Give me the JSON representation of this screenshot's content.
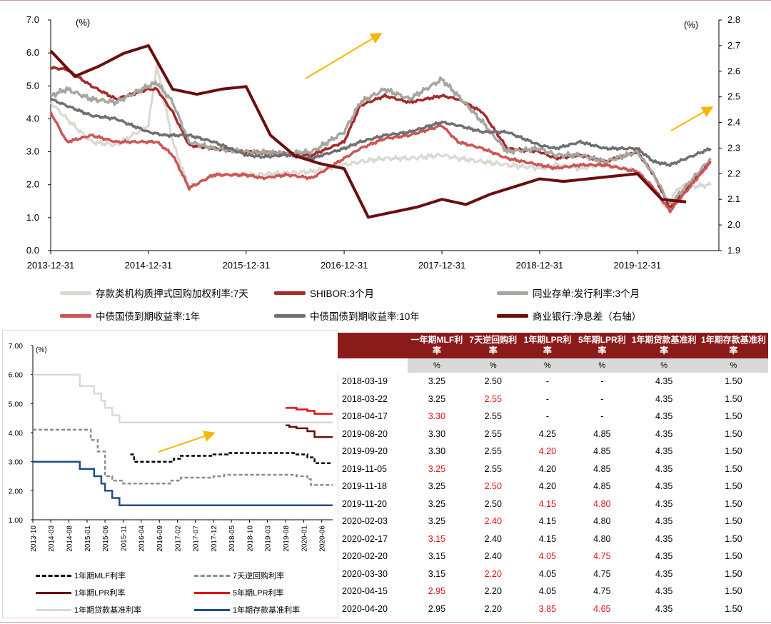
{
  "top_chart": {
    "left_unit": "(%)",
    "right_unit": "(%)",
    "left_ticks": [
      "0.0",
      "1.0",
      "2.0",
      "3.0",
      "4.0",
      "5.0",
      "6.0",
      "7.0"
    ],
    "right_ticks": [
      "1.9",
      "2.0",
      "2.1",
      "2.2",
      "2.3",
      "2.4",
      "2.5",
      "2.6",
      "2.7",
      "2.8"
    ],
    "x_ticks": [
      "2013-12-31",
      "2014-12-31",
      "2015-12-31",
      "2016-12-31",
      "2017-12-31",
      "2018-12-31",
      "2019-12-31"
    ],
    "legend": [
      {
        "label": "存款类机构质押式回购加权利率:7天",
        "color": "#d9d9d2"
      },
      {
        "label": "SHIBOR:3个月",
        "color": "#a52a2a"
      },
      {
        "label": "同业存单:发行利率:3个月",
        "color": "#a6a6a0"
      },
      {
        "label": "中债国债到期收益率:1年",
        "color": "#cd5555"
      },
      {
        "label": "中债国债到期收益率:10年",
        "color": "#707070"
      },
      {
        "label": "商业银行:净息差（右轴）",
        "color": "#6b0d0d"
      }
    ]
  },
  "bottom_chart": {
    "unit": "(%)",
    "y_ticks": [
      "1.00",
      "2.00",
      "3.00",
      "4.00",
      "5.00",
      "6.00",
      "7.00"
    ],
    "x_ticks": [
      "2013-10",
      "2014-03",
      "2014-08",
      "2015-01",
      "2015-06",
      "2015-11",
      "2016-04",
      "2016-09",
      "2017-02",
      "2017-07",
      "2017-12",
      "2018-05",
      "2018-10",
      "2019-03",
      "2019-08",
      "2020-01",
      "2020-06"
    ],
    "legend": [
      {
        "label": "1年期MLF利率",
        "color": "#000000",
        "dash": true
      },
      {
        "label": "7天逆回购利率",
        "color": "#8c8c8c",
        "dash": true
      },
      {
        "label": "1年期LPR利率",
        "color": "#6b0d0d",
        "dash": false
      },
      {
        "label": "5年期LPR利率",
        "color": "#e01010",
        "dash": false
      },
      {
        "label": "1年期贷款基准利率",
        "color": "#d9d9d9",
        "dash": false
      },
      {
        "label": "1年期存款基准利率",
        "color": "#1f4e8c",
        "dash": false
      }
    ]
  },
  "table": {
    "headers": [
      "一年期MLF利率",
      "7天逆回购利率",
      "1年期LPR利率",
      "5年期LPR利率",
      "1年期贷款基准利率",
      "1年期存款基准利率"
    ],
    "units": [
      "%",
      "%",
      "%",
      "%",
      "%",
      "%"
    ],
    "rows": [
      {
        "date": "2018-03-19",
        "values": [
          "3.25",
          "2.50",
          "-",
          "-",
          "4.35",
          "1.50"
        ],
        "red": []
      },
      {
        "date": "2018-03-22",
        "values": [
          "3.25",
          "2.55",
          "-",
          "-",
          "4.35",
          "1.50"
        ],
        "red": [
          1
        ]
      },
      {
        "date": "2018-04-17",
        "values": [
          "3.30",
          "2.55",
          "-",
          "-",
          "4.35",
          "1.50"
        ],
        "red": [
          0
        ]
      },
      {
        "date": "2019-08-20",
        "values": [
          "3.30",
          "2.55",
          "4.25",
          "4.85",
          "4.35",
          "1.50"
        ],
        "red": []
      },
      {
        "date": "2019-09-20",
        "values": [
          "3.30",
          "2.55",
          "4.20",
          "4.85",
          "4.35",
          "1.50"
        ],
        "red": [
          2
        ]
      },
      {
        "date": "2019-11-05",
        "values": [
          "3.25",
          "2.55",
          "4.20",
          "4.85",
          "4.35",
          "1.50"
        ],
        "red": [
          0
        ]
      },
      {
        "date": "2019-11-18",
        "values": [
          "3.25",
          "2.50",
          "4.20",
          "4.85",
          "4.35",
          "1.50"
        ],
        "red": [
          1
        ]
      },
      {
        "date": "2019-11-20",
        "values": [
          "3.25",
          "2.50",
          "4.15",
          "4.80",
          "4.35",
          "1.50"
        ],
        "red": [
          2,
          3
        ]
      },
      {
        "date": "2020-02-03",
        "values": [
          "3.25",
          "2.40",
          "4.15",
          "4.80",
          "4.35",
          "1.50"
        ],
        "red": [
          1
        ]
      },
      {
        "date": "2020-02-17",
        "values": [
          "3.15",
          "2.40",
          "4.15",
          "4.80",
          "4.35",
          "1.50"
        ],
        "red": [
          0
        ]
      },
      {
        "date": "2020-02-20",
        "values": [
          "3.15",
          "2.40",
          "4.05",
          "4.75",
          "4.35",
          "1.50"
        ],
        "red": [
          2,
          3
        ]
      },
      {
        "date": "2020-03-30",
        "values": [
          "3.15",
          "2.20",
          "4.05",
          "4.75",
          "4.35",
          "1.50"
        ],
        "red": [
          1
        ]
      },
      {
        "date": "2020-04-15",
        "values": [
          "2.95",
          "2.20",
          "4.05",
          "4.75",
          "4.35",
          "1.50"
        ],
        "red": [
          0
        ]
      },
      {
        "date": "2020-04-20",
        "values": [
          "2.95",
          "2.20",
          "3.85",
          "4.65",
          "4.35",
          "1.50"
        ],
        "red": [
          2,
          3
        ]
      }
    ]
  },
  "chart_data": [
    {
      "type": "line",
      "x_range": [
        "2013-12-31",
        "2020-09-30"
      ],
      "ylim_left": [
        0,
        7
      ],
      "ylim_right": [
        1.9,
        2.8
      ],
      "series": [
        {
          "name": "存款类机构质押式回购加权利率:7天",
          "axis": "left",
          "x": [
            "2013-12-31",
            "2014-03-01",
            "2014-06-01",
            "2014-09-01",
            "2014-12-31",
            "2015-01-31",
            "2015-03-01",
            "2015-04-01",
            "2015-06-01",
            "2015-09-01",
            "2015-12-31",
            "2016-06-01",
            "2016-09-01",
            "2016-12-31",
            "2017-03-01",
            "2017-06-01",
            "2017-09-01",
            "2017-12-31",
            "2018-03-01",
            "2018-06-01",
            "2018-09-01",
            "2018-12-31",
            "2019-03-01",
            "2019-06-01",
            "2019-09-01",
            "2019-12-31",
            "2020-03-01",
            "2020-04-15",
            "2020-06-01",
            "2020-09-30"
          ],
          "values": [
            4.5,
            4.0,
            3.3,
            3.2,
            3.8,
            5.6,
            4.5,
            3.3,
            1.9,
            2.3,
            2.3,
            2.35,
            2.4,
            2.6,
            2.7,
            2.8,
            2.8,
            2.9,
            2.8,
            2.7,
            2.6,
            2.5,
            2.6,
            2.5,
            2.6,
            2.4,
            1.9,
            1.3,
            1.9,
            2.0
          ]
        },
        {
          "name": "SHIBOR:3个月",
          "axis": "left",
          "x": [
            "2013-12-31",
            "2014-03-01",
            "2014-06-01",
            "2014-09-01",
            "2014-12-31",
            "2015-02-01",
            "2015-04-01",
            "2015-06-01",
            "2015-09-01",
            "2015-12-31",
            "2016-06-01",
            "2016-09-01",
            "2016-12-31",
            "2017-03-01",
            "2017-06-01",
            "2017-09-01",
            "2017-12-31",
            "2018-03-01",
            "2018-06-01",
            "2018-09-01",
            "2018-12-31",
            "2019-03-01",
            "2019-06-01",
            "2019-09-01",
            "2019-12-31",
            "2020-03-01",
            "2020-05-01",
            "2020-09-30"
          ],
          "values": [
            5.55,
            5.5,
            5.0,
            4.6,
            4.9,
            4.9,
            4.2,
            3.2,
            3.1,
            3.0,
            2.95,
            2.9,
            3.3,
            4.4,
            4.7,
            4.5,
            4.7,
            4.6,
            4.2,
            3.1,
            3.0,
            2.8,
            2.9,
            2.7,
            3.0,
            2.3,
            1.3,
            2.7
          ]
        },
        {
          "name": "同业存单:发行利率:3个月",
          "axis": "left",
          "x": [
            "2013-12-31",
            "2014-03-01",
            "2014-06-01",
            "2014-09-01",
            "2014-12-31",
            "2015-02-01",
            "2015-04-01",
            "2015-06-01",
            "2015-09-01",
            "2015-12-31",
            "2016-06-01",
            "2016-09-01",
            "2016-12-31",
            "2017-03-01",
            "2017-06-01",
            "2017-09-01",
            "2017-12-31",
            "2018-03-01",
            "2018-06-01",
            "2018-09-01",
            "2018-12-31",
            "2019-03-01",
            "2019-06-01",
            "2019-09-01",
            "2019-12-31",
            "2020-03-01",
            "2020-05-01",
            "2020-09-30"
          ],
          "values": [
            4.7,
            4.9,
            4.6,
            4.5,
            5.0,
            5.1,
            4.5,
            3.3,
            3.1,
            3.0,
            2.95,
            3.0,
            3.6,
            4.5,
            4.9,
            4.6,
            5.2,
            4.7,
            3.9,
            3.0,
            3.1,
            2.9,
            2.9,
            2.7,
            3.0,
            2.3,
            1.4,
            2.8
          ]
        },
        {
          "name": "中债国债到期收益率:1年",
          "axis": "left",
          "x": [
            "2013-12-31",
            "2014-03-01",
            "2014-06-01",
            "2014-09-01",
            "2014-12-31",
            "2015-02-01",
            "2015-04-01",
            "2015-06-01",
            "2015-09-01",
            "2015-12-31",
            "2016-03-01",
            "2016-06-01",
            "2016-09-01",
            "2016-12-31",
            "2017-03-01",
            "2017-06-01",
            "2017-09-01",
            "2017-12-31",
            "2018-03-01",
            "2018-06-01",
            "2018-09-01",
            "2018-12-31",
            "2019-03-01",
            "2019-06-01",
            "2019-09-01",
            "2019-12-31",
            "2020-03-01",
            "2020-05-01",
            "2020-09-30"
          ],
          "values": [
            4.2,
            3.3,
            3.5,
            3.3,
            3.3,
            3.3,
            2.9,
            1.9,
            2.3,
            2.3,
            2.2,
            2.3,
            2.2,
            2.8,
            3.1,
            3.4,
            3.5,
            3.8,
            3.3,
            3.1,
            2.8,
            2.6,
            2.5,
            2.6,
            2.6,
            2.4,
            1.9,
            1.2,
            2.7
          ]
        },
        {
          "name": "中债国债到期收益率:10年",
          "axis": "left",
          "x": [
            "2013-12-31",
            "2014-03-01",
            "2014-06-01",
            "2014-09-01",
            "2014-12-31",
            "2015-03-01",
            "2015-06-01",
            "2015-09-01",
            "2015-12-31",
            "2016-03-01",
            "2016-06-01",
            "2016-09-01",
            "2016-12-31",
            "2017-03-01",
            "2017-06-01",
            "2017-09-01",
            "2017-12-31",
            "2018-03-01",
            "2018-06-01",
            "2018-09-01",
            "2018-12-31",
            "2019-03-01",
            "2019-06-01",
            "2019-09-01",
            "2019-12-31",
            "2020-03-01",
            "2020-05-01",
            "2020-09-30"
          ],
          "values": [
            4.6,
            4.4,
            4.1,
            4.0,
            3.6,
            3.5,
            3.5,
            3.3,
            2.9,
            2.85,
            2.9,
            2.8,
            3.1,
            3.3,
            3.5,
            3.6,
            3.9,
            3.8,
            3.6,
            3.6,
            3.2,
            3.1,
            3.3,
            3.1,
            3.1,
            2.7,
            2.6,
            3.1
          ]
        },
        {
          "name": "商业银行:净息差（右轴）",
          "axis": "right",
          "x": [
            "2013-12-31",
            "2014-03-31",
            "2014-06-30",
            "2014-09-30",
            "2014-12-31",
            "2015-03-31",
            "2015-06-30",
            "2015-09-30",
            "2015-12-31",
            "2016-03-31",
            "2016-06-30",
            "2016-09-30",
            "2016-12-31",
            "2017-03-31",
            "2017-06-30",
            "2017-09-30",
            "2017-12-31",
            "2018-03-31",
            "2018-06-30",
            "2018-09-30",
            "2018-12-31",
            "2019-03-31",
            "2019-06-30",
            "2019-09-30",
            "2019-12-31",
            "2020-03-31",
            "2020-06-30"
          ],
          "values": [
            2.68,
            2.58,
            2.62,
            2.67,
            2.7,
            2.53,
            2.51,
            2.53,
            2.54,
            2.35,
            2.27,
            2.24,
            2.22,
            2.03,
            2.05,
            2.07,
            2.1,
            2.08,
            2.12,
            2.15,
            2.18,
            2.17,
            2.18,
            2.19,
            2.2,
            2.1,
            2.09
          ]
        }
      ]
    },
    {
      "type": "line",
      "x_range": [
        "2013-10",
        "2020-09"
      ],
      "ylim": [
        1.0,
        7.0
      ],
      "series": [
        {
          "name": "1年期MLF利率",
          "step": true,
          "x": [
            "2016-01",
            "2016-02",
            "2017-01",
            "2017-03",
            "2017-12",
            "2018-04",
            "2019-11",
            "2020-02",
            "2020-04",
            "2020-09"
          ],
          "values": [
            3.25,
            3.0,
            3.1,
            3.2,
            3.25,
            3.3,
            3.25,
            3.15,
            2.95,
            2.95
          ]
        },
        {
          "name": "7天逆回购利率",
          "step": true,
          "x": [
            "2013-10",
            "2015-02",
            "2015-04",
            "2015-06",
            "2015-08",
            "2015-11",
            "2016-12",
            "2017-03",
            "2017-12",
            "2018-03",
            "2019-11",
            "2020-02",
            "2020-03",
            "2020-09"
          ],
          "values": [
            4.1,
            3.75,
            3.35,
            2.5,
            2.35,
            2.25,
            2.35,
            2.45,
            2.5,
            2.55,
            2.5,
            2.4,
            2.2,
            2.2
          ]
        },
        {
          "name": "1年期LPR利率",
          "step": true,
          "x": [
            "2019-08",
            "2019-09",
            "2019-11",
            "2020-02",
            "2020-04",
            "2020-09"
          ],
          "values": [
            4.25,
            4.2,
            4.15,
            4.05,
            3.85,
            3.85
          ]
        },
        {
          "name": "5年期LPR利率",
          "step": true,
          "x": [
            "2019-08",
            "2019-11",
            "2020-02",
            "2020-04",
            "2020-09"
          ],
          "values": [
            4.85,
            4.8,
            4.75,
            4.65,
            4.65
          ]
        },
        {
          "name": "1年期贷款基准利率",
          "step": true,
          "x": [
            "2013-10",
            "2014-11",
            "2015-03",
            "2015-05",
            "2015-06",
            "2015-08",
            "2015-10",
            "2020-09"
          ],
          "values": [
            6.0,
            5.6,
            5.35,
            5.1,
            4.85,
            4.6,
            4.35,
            4.35
          ]
        },
        {
          "name": "1年期存款基准利率",
          "step": true,
          "x": [
            "2013-10",
            "2014-11",
            "2015-03",
            "2015-05",
            "2015-06",
            "2015-08",
            "2015-10",
            "2020-09"
          ],
          "values": [
            3.0,
            2.75,
            2.5,
            2.25,
            2.0,
            1.75,
            1.5,
            1.5
          ]
        }
      ]
    }
  ]
}
